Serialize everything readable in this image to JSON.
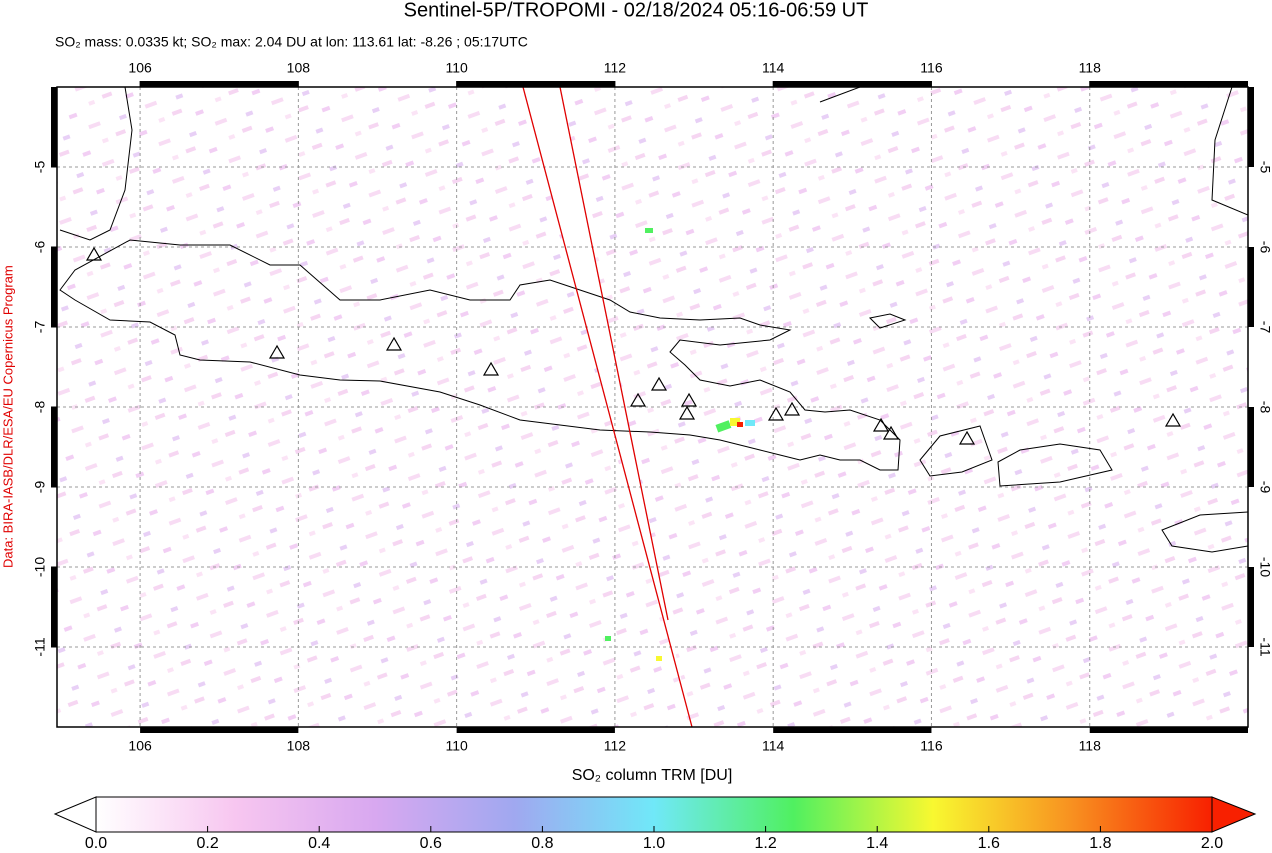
{
  "title": "Sentinel-5P/TROPOMI - 02/18/2024 05:16-06:59 UT",
  "subtitle": "SO₂ mass: 0.0335 kt; SO₂ max: 2.04 DU at lon: 113.61 lat: -8.26 ; 05:17UTC",
  "credit": "Data: BIRA-IASB/DLR/ESA/EU Copernicus Program",
  "map": {
    "xlim": [
      104.95,
      120
    ],
    "ylim": [
      -12,
      -4
    ],
    "xticks": [
      106,
      108,
      110,
      112,
      114,
      116,
      118
    ],
    "yticks": [
      -5,
      -6,
      -7,
      -8,
      -9,
      -10,
      -11
    ],
    "grid": true
  },
  "colorbar": {
    "label": "SO₂ column TRM [DU]",
    "colors": [
      "#ffffff",
      "#f7c6f0",
      "#d8a8f0",
      "#a0a8f0",
      "#70e8f8",
      "#50f060",
      "#f8f830",
      "#f89020",
      "#f82000"
    ],
    "ticks": [
      {
        "value": 0,
        "label": "0.0"
      },
      {
        "value": 0.2,
        "label": "0.2"
      },
      {
        "value": 0.4,
        "label": "0.4"
      },
      {
        "value": 0.6,
        "label": "0.6"
      },
      {
        "value": 0.8,
        "label": "0.8"
      },
      {
        "value": 1,
        "label": "1.0"
      },
      {
        "value": 1.2,
        "label": "1.2"
      },
      {
        "value": 1.4,
        "label": "1.4"
      },
      {
        "value": 1.6,
        "label": "1.6"
      },
      {
        "value": 1.8,
        "label": "1.8"
      },
      {
        "value": 2,
        "label": "2.0"
      }
    ]
  }
}
